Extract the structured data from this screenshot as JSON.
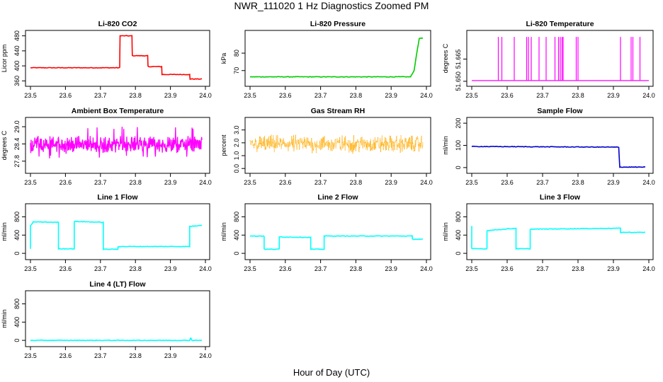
{
  "figure": {
    "title": "NWR_111020  1 Hz Diagnostics Zoomed PM",
    "xlabel": "Hour of Day (UTC)"
  },
  "chart_data": [
    {
      "type": "line",
      "title": "Li-820 CO2",
      "ylabel": "Licor ppm",
      "color": "#ff0000",
      "xlim": [
        23.5,
        24.0
      ],
      "ylim": [
        355,
        485
      ],
      "xticks": [
        "23.5",
        "23.6",
        "23.7",
        "23.8",
        "23.9",
        "24.0"
      ],
      "yticks": [
        360,
        400,
        440,
        480
      ],
      "series": [
        {
          "x": [
            23.5,
            23.755,
            23.756,
            23.79,
            23.791,
            23.835,
            23.836,
            23.875,
            23.876,
            23.955,
            23.956,
            23.99
          ],
          "values": [
            395,
            395,
            480,
            480,
            427,
            427,
            398,
            398,
            377,
            377,
            365,
            365
          ]
        }
      ]
    },
    {
      "type": "line",
      "title": "Li-820 Pressure",
      "ylabel": "kPa",
      "color": "#00cc00",
      "xlim": [
        23.5,
        24.0
      ],
      "ylim": [
        63,
        91
      ],
      "xticks": [
        "23.5",
        "23.6",
        "23.7",
        "23.8",
        "23.9",
        "24.0"
      ],
      "yticks": [
        70,
        80
      ],
      "series": [
        {
          "x": [
            23.5,
            23.955,
            23.965,
            23.975,
            23.98,
            23.99
          ],
          "values": [
            66.4,
            66.4,
            70,
            83,
            88.5,
            88.5
          ]
        }
      ]
    },
    {
      "type": "line",
      "title": "Li-820 Temperature",
      "ylabel": "degrees C",
      "color": "#ff00ff",
      "xlim": [
        23.5,
        24.0
      ],
      "ylim": [
        51.649,
        51.682
      ],
      "xticks": [
        "23.5",
        "23.6",
        "23.7",
        "23.8",
        "23.9",
        "24.0"
      ],
      "yticks": [
        "51.650",
        "51.665"
      ],
      "series": [
        {
          "baseline": 51.6505,
          "spike": 51.68,
          "spike_x": [
            23.575,
            23.585,
            23.62,
            23.655,
            23.66,
            23.668,
            23.69,
            23.71,
            23.735,
            23.745,
            23.75,
            23.755,
            23.758,
            23.795,
            23.8,
            23.92,
            23.95,
            23.955,
            23.975
          ]
        }
      ]
    },
    {
      "type": "line",
      "title": "Ambient Box Temperature",
      "ylabel": "degrees C",
      "color": "#ff00ff",
      "xlim": [
        23.5,
        24.0
      ],
      "ylim": [
        27.5,
        29.2
      ],
      "xticks": [
        "23.5",
        "23.6",
        "23.7",
        "23.8",
        "23.9",
        "24.0"
      ],
      "yticks": [
        "27.8",
        "28.4",
        "29.0"
      ],
      "series": [
        {
          "noise": {
            "mean": 28.38,
            "spread": 0.18,
            "outliers_low": 27.85,
            "outliers_high": 29.0
          }
        }
      ]
    },
    {
      "type": "scatter",
      "title": "Gas Stream RH",
      "ylabel": "percent",
      "color": "#ffaa00",
      "xlim": [
        23.5,
        24.0
      ],
      "ylim": [
        -0.1,
        3.7
      ],
      "xticks": [
        "23.5",
        "23.6",
        "23.7",
        "23.8",
        "23.9",
        "24.0"
      ],
      "yticks": [
        "0.0",
        "1.0",
        "2.0",
        "3.0"
      ],
      "series": [
        {
          "noise": {
            "mean": 1.9,
            "spread": 0.45,
            "min": 0.2,
            "max": 3.4
          }
        }
      ]
    },
    {
      "type": "line",
      "title": "Sample Flow",
      "ylabel": "ml/min",
      "color": "#0000cc",
      "xlim": [
        23.5,
        24.0
      ],
      "ylim": [
        -10,
        210
      ],
      "xticks": [
        "23.5",
        "23.6",
        "23.7",
        "23.8",
        "23.9",
        "24.0"
      ],
      "yticks": [
        0,
        100,
        200
      ],
      "series": [
        {
          "x": [
            23.5,
            23.915,
            23.918,
            23.99
          ],
          "values": [
            95,
            92,
            2,
            2
          ]
        }
      ]
    },
    {
      "type": "line",
      "title": "Line 1 Flow",
      "ylabel": "ml/min",
      "color": "#00ffff",
      "xlim": [
        23.5,
        24.0
      ],
      "ylim": [
        -60,
        1010
      ],
      "xticks": [
        "23.5",
        "23.6",
        "23.7",
        "23.8",
        "23.9",
        "24.0"
      ],
      "yticks": [
        0,
        400,
        800
      ],
      "series": [
        {
          "x": [
            23.5,
            23.5,
            23.508,
            23.58,
            23.58,
            23.625,
            23.625,
            23.708,
            23.708,
            23.75,
            23.75,
            23.955,
            23.955,
            23.97,
            23.99
          ],
          "values": [
            100,
            600,
            690,
            680,
            100,
            100,
            700,
            680,
            90,
            90,
            150,
            150,
            590,
            600,
            620
          ]
        }
      ]
    },
    {
      "type": "line",
      "title": "Line 2 Flow",
      "ylabel": "ml/min",
      "color": "#00ffff",
      "xlim": [
        23.5,
        24.0
      ],
      "ylim": [
        -60,
        1010
      ],
      "xticks": [
        "23.5",
        "23.6",
        "23.7",
        "23.8",
        "23.9",
        "24.0"
      ],
      "yticks": [
        0,
        400,
        800
      ],
      "series": [
        {
          "x": [
            23.5,
            23.54,
            23.54,
            23.583,
            23.583,
            23.672,
            23.672,
            23.71,
            23.71,
            23.96,
            23.96,
            23.99
          ],
          "values": [
            380,
            380,
            90,
            90,
            360,
            350,
            90,
            90,
            380,
            380,
            310,
            310
          ]
        }
      ]
    },
    {
      "type": "line",
      "title": "Line 3 Flow",
      "ylabel": "ml/min",
      "color": "#00ffff",
      "xlim": [
        23.5,
        24.0
      ],
      "ylim": [
        -60,
        1010
      ],
      "xticks": [
        "23.5",
        "23.6",
        "23.7",
        "23.8",
        "23.9",
        "24.0"
      ],
      "yticks": [
        0,
        400,
        800
      ],
      "series": [
        {
          "x": [
            23.5,
            23.5,
            23.5,
            23.543,
            23.543,
            23.625,
            23.625,
            23.665,
            23.665,
            23.92,
            23.92,
            23.99
          ],
          "values": [
            600,
            100,
            100,
            100,
            500,
            550,
            100,
            100,
            530,
            550,
            460,
            460
          ]
        }
      ]
    },
    {
      "type": "line",
      "title": "Line 4 (LT) Flow",
      "ylabel": "ml/min",
      "color": "#00ffff",
      "xlim": [
        23.5,
        24.0
      ],
      "ylim": [
        -60,
        1010
      ],
      "xticks": [
        "23.5",
        "23.6",
        "23.7",
        "23.8",
        "23.9",
        "24.0"
      ],
      "yticks": [
        0,
        400,
        800
      ],
      "series": [
        {
          "x": [
            23.5,
            23.955,
            23.958,
            23.961,
            23.99
          ],
          "values": [
            0,
            0,
            60,
            0,
            0
          ]
        }
      ]
    }
  ]
}
